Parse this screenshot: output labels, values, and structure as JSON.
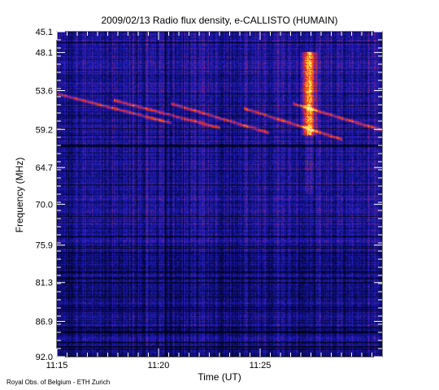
{
  "chart_data": {
    "type": "heatmap",
    "title": "2009/02/13  Radio flux density, e-CALLISTO (HUMAIN)",
    "xlabel": "Time (UT)",
    "ylabel": "Frequency (MHz)",
    "x_ticks": [
      "11:15",
      "11:20",
      "11:25"
    ],
    "x_range": [
      "11:15",
      "11:31"
    ],
    "y_ticks": [
      "45.1",
      "48.1",
      "53.6",
      "59.2",
      "64.7",
      "70.0",
      "75.9",
      "81.3",
      "86.9",
      "92.0"
    ],
    "y_range": [
      45.1,
      92.0
    ],
    "y_inverted": true,
    "colormap": [
      "#000014",
      "#0a0a5a",
      "#1e1ec8",
      "#b4285a",
      "#ff3c14",
      "#ffdc1e",
      "#ffffcc"
    ],
    "features": [
      {
        "label": "drifting bursts",
        "start_time": "11:15",
        "end_time": "11:29",
        "freq_range": [
          52.5,
          60.0
        ]
      },
      {
        "label": "bright burst",
        "time": "11:27",
        "freq_range": [
          48.0,
          60.0
        ]
      }
    ],
    "credit": "Royal Obs. of Belgium - ETH Zurich"
  }
}
